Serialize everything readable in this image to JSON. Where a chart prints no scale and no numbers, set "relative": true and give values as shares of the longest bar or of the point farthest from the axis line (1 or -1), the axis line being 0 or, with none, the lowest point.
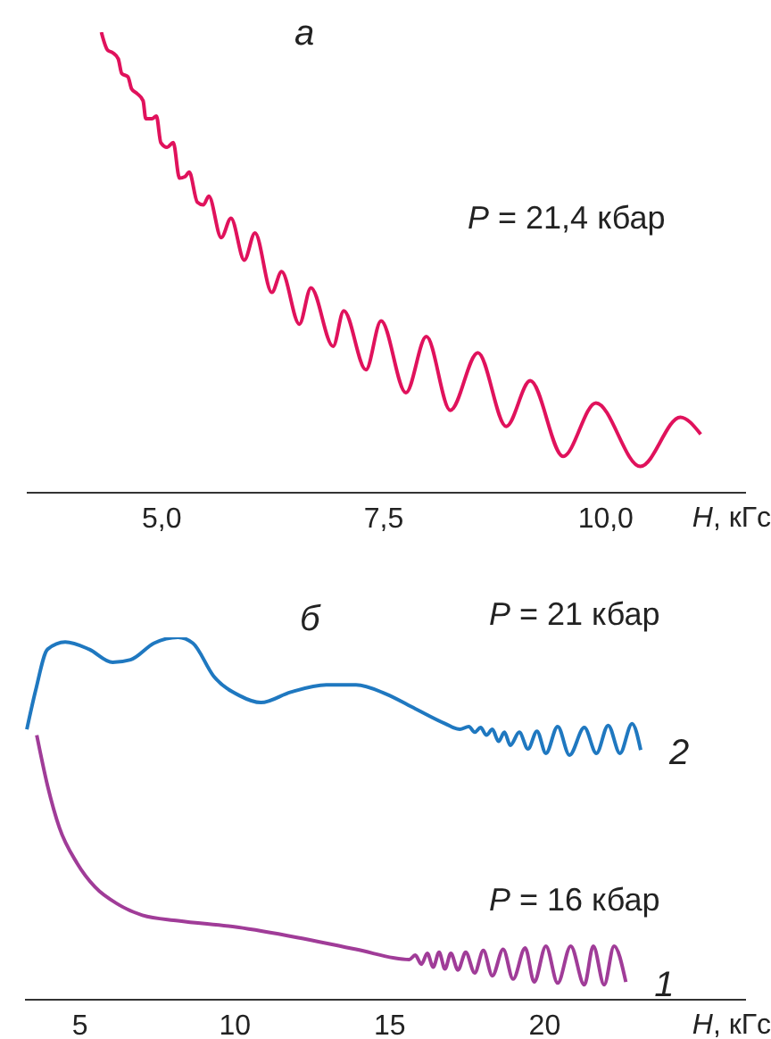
{
  "chart_data": [
    {
      "type": "line",
      "title": "а",
      "xlabel": "H, кГс",
      "relative": true,
      "tick_labels": "x",
      "xlim": [
        3.48,
        11.58
      ],
      "xticks": [
        {
          "value": 5,
          "label": "5,0"
        },
        {
          "value": 7.5,
          "label": "7,5"
        },
        {
          "value": 10,
          "label": "10,0"
        }
      ],
      "annotations": [
        "P = 21,4 кбар"
      ],
      "series": [
        {
          "color": "#e0125c",
          "x": [
            4.32,
            4.39,
            4.45,
            4.51,
            4.55,
            4.62,
            4.66,
            4.72,
            4.79,
            4.82,
            4.89,
            4.94,
            4.99,
            5.06,
            5.13,
            5.2,
            5.26,
            5.31,
            5.4,
            5.47,
            5.53,
            5.67,
            5.78,
            5.93,
            6.05,
            6.24,
            6.35,
            6.55,
            6.68,
            6.93,
            7.05,
            7.3,
            7.47,
            7.75,
            7.98,
            8.25,
            8.56,
            8.88,
            9.15,
            9.52,
            9.89,
            10.39,
            10.84,
            11.07
          ],
          "values": [
            1.0,
            0.961,
            0.955,
            0.942,
            0.91,
            0.903,
            0.877,
            0.867,
            0.851,
            0.812,
            0.812,
            0.818,
            0.76,
            0.75,
            0.76,
            0.683,
            0.686,
            0.696,
            0.631,
            0.625,
            0.644,
            0.554,
            0.596,
            0.505,
            0.564,
            0.435,
            0.48,
            0.366,
            0.445,
            0.318,
            0.395,
            0.267,
            0.373,
            0.217,
            0.339,
            0.179,
            0.304,
            0.144,
            0.243,
            0.079,
            0.195,
            0.057,
            0.164,
            0.127
          ]
        }
      ]
    },
    {
      "type": "line",
      "title": "б",
      "xlabel": "H, кГс",
      "relative": true,
      "tick_labels": "x",
      "xlim": [
        3.22,
        26.5
      ],
      "xticks": [
        5,
        10,
        15,
        20
      ],
      "annotations": [
        "P = 21 кбар",
        "P = 16 кбар"
      ],
      "series": [
        {
          "name": "2",
          "color": "#1f78c0",
          "x": [
            3.28,
            3.56,
            3.95,
            4.52,
            5.29,
            6.05,
            6.63,
            7.39,
            8.16,
            8.64,
            9.31,
            10.15,
            10.84,
            11.8,
            12.95,
            13.91,
            14.87,
            15.82,
            16.78,
            17.26,
            17.55,
            17.74,
            17.93,
            18.12,
            18.31,
            18.51,
            18.7,
            18.89,
            19.18,
            19.46,
            19.75,
            20.04,
            20.42,
            20.8,
            21.28,
            21.67,
            22.05,
            22.43,
            22.82,
            23.1
          ],
          "values": [
            0.746,
            0.852,
            0.967,
            0.987,
            0.967,
            0.931,
            0.938,
            0.984,
            1.0,
            0.984,
            0.893,
            0.839,
            0.82,
            0.849,
            0.869,
            0.869,
            0.844,
            0.803,
            0.762,
            0.746,
            0.754,
            0.738,
            0.751,
            0.73,
            0.746,
            0.713,
            0.738,
            0.702,
            0.738,
            0.692,
            0.741,
            0.68,
            0.754,
            0.675,
            0.751,
            0.68,
            0.757,
            0.68,
            0.762,
            0.689
          ]
        },
        {
          "name": "1",
          "color": "#a03c98",
          "x": [
            3.6,
            3.95,
            4.33,
            4.9,
            5.48,
            6.25,
            7.01,
            8.16,
            10.08,
            12.0,
            13.91,
            15.63,
            15.82,
            16.02,
            16.21,
            16.4,
            16.59,
            16.78,
            16.97,
            17.2,
            17.45,
            17.74,
            18.02,
            18.31,
            18.66,
            18.98,
            19.37,
            19.66,
            20.04,
            20.42,
            20.84,
            21.28,
            21.57,
            21.92,
            22.24,
            22.62
          ],
          "values": [
            0.73,
            0.59,
            0.475,
            0.377,
            0.311,
            0.262,
            0.233,
            0.218,
            0.2,
            0.172,
            0.139,
            0.111,
            0.123,
            0.098,
            0.128,
            0.09,
            0.131,
            0.085,
            0.128,
            0.082,
            0.131,
            0.074,
            0.136,
            0.066,
            0.139,
            0.057,
            0.143,
            0.049,
            0.148,
            0.046,
            0.148,
            0.041,
            0.148,
            0.041,
            0.148,
            0.049
          ]
        }
      ]
    }
  ]
}
